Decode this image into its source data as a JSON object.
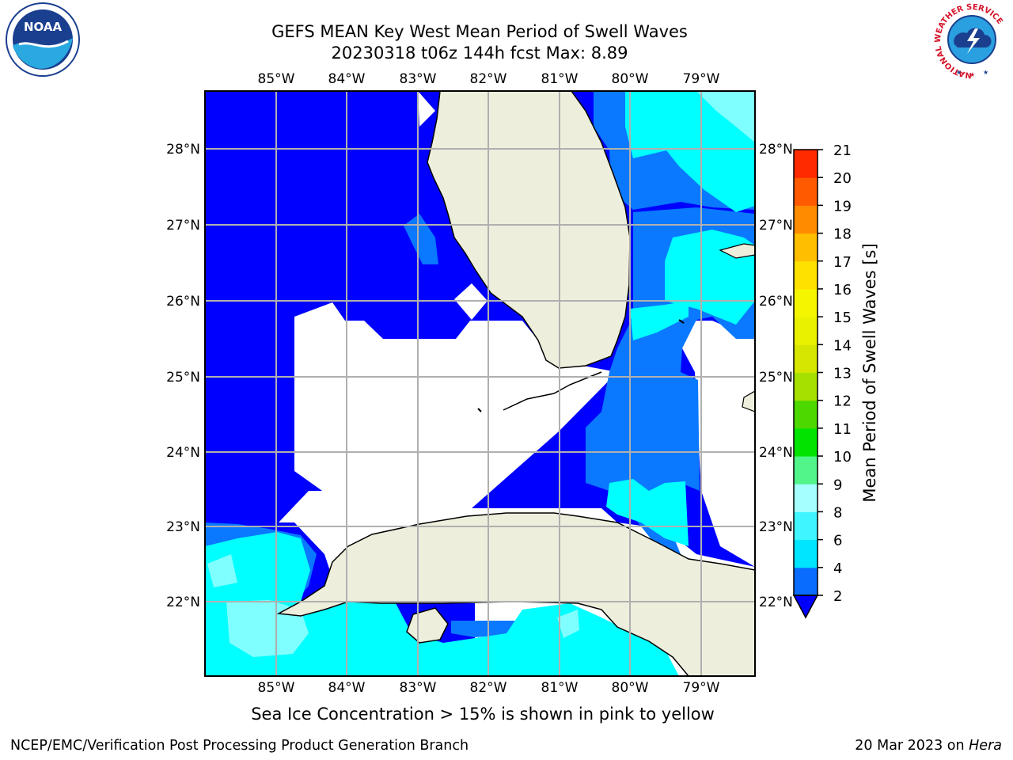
{
  "title_line1": "GEFS MEAN Key West Mean Period of Swell Waves",
  "title_line2": "20230318 t06z 144h fcst   Max: 8.89",
  "logos": {
    "left": "noaa-logo",
    "right": "nws-logo"
  },
  "logo_text": {
    "noaa": "NOAA",
    "nws_ring": "NATIONAL WEATHER SERVICE"
  },
  "map": {
    "lon_labels": [
      "85°W",
      "84°W",
      "83°W",
      "82°W",
      "81°W",
      "80°W",
      "79°W"
    ],
    "lat_labels": [
      "28°N",
      "27°N",
      "26°N",
      "25°N",
      "24°N",
      "23°N",
      "22°N"
    ],
    "colors": {
      "ocean_dark": "#0000ff",
      "ocean_mid": "#0a78ff",
      "ocean_light": "#00ffff",
      "ocean_pale": "#7fffff",
      "land": "#eeeedd",
      "grid": "#b0b0b0"
    }
  },
  "colorbar": {
    "label": "Mean Period of Swell Waves [s]",
    "ticks": [
      "2",
      "4",
      "6",
      "8",
      "9",
      "10",
      "11",
      "12",
      "13",
      "14",
      "15",
      "16",
      "17",
      "18",
      "19",
      "20",
      "21"
    ],
    "colors": [
      "#0a6cff",
      "#00e5ff",
      "#3ff5ff",
      "#a5ffff",
      "#51f58a",
      "#00e400",
      "#4dd800",
      "#a6e000",
      "#d6e600",
      "#e9f000",
      "#f5f500",
      "#ffe100",
      "#ffbe00",
      "#ff8c00",
      "#ff5a00",
      "#ff2a00",
      "#ff0000"
    ],
    "under_color": "#0000ff"
  },
  "note": "Sea Ice Concentration > 15% is shown in pink to yellow",
  "footer_left": "NCEP/EMC/Verification Post Processing Product Generation Branch",
  "footer_date": "20 Mar 2023 on ",
  "footer_machine": "Hera"
}
